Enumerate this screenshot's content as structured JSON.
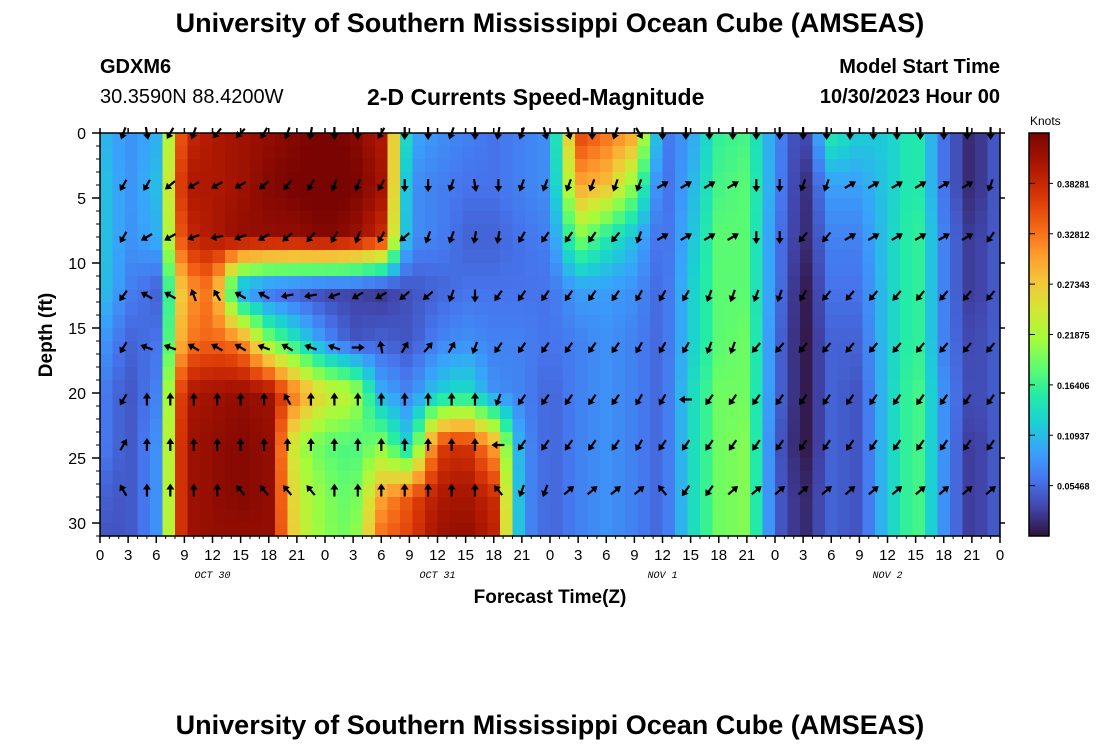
{
  "header": {
    "title": "University of Southern Mississippi Ocean Cube (AMSEAS)",
    "station": "GDXM6",
    "location": "30.3590N  88.4200W",
    "subtitle": "2-D Currents Speed-Magnitude",
    "model_start_label": "Model Start Time",
    "model_start_value": "10/30/2023 Hour 00"
  },
  "footer": {
    "title": "University of Southern Mississippi Ocean Cube (AMSEAS)"
  },
  "colors": {
    "background": "#ffffff",
    "arrow": "#000000",
    "axis": "#000000"
  },
  "chart_data": {
    "type": "heatmap",
    "title": "2-D Currents Speed-Magnitude",
    "xlabel": "Forecast Time(Z)",
    "ylabel": "Depth (ft)",
    "xlim": [
      0,
      96
    ],
    "ylim": [
      31,
      0
    ],
    "x_ticks": [
      0,
      3,
      6,
      9,
      12,
      15,
      18,
      21,
      24,
      27,
      30,
      33,
      36,
      39,
      42,
      45,
      48,
      51,
      54,
      57,
      60,
      63,
      66,
      69,
      72,
      75,
      78,
      81,
      84,
      87,
      90,
      93,
      96
    ],
    "x_tick_labels": [
      "0",
      "3",
      "6",
      "9",
      "12",
      "15",
      "18",
      "21",
      "0",
      "3",
      "6",
      "9",
      "12",
      "15",
      "18",
      "21",
      "0",
      "3",
      "6",
      "9",
      "12",
      "15",
      "18",
      "21",
      "0",
      "3",
      "6",
      "9",
      "12",
      "15",
      "18",
      "21",
      "0"
    ],
    "y_ticks": [
      0,
      5,
      10,
      15,
      20,
      25,
      30
    ],
    "y_tick_labels": [
      "0",
      "5",
      "10",
      "15",
      "20",
      "25",
      "30"
    ],
    "date_labels": [
      {
        "label": "OCT 30",
        "hour": 12
      },
      {
        "label": "OCT 31",
        "hour": 36
      },
      {
        "label": "NOV 1",
        "hour": 60
      },
      {
        "label": "NOV 2",
        "hour": 84
      }
    ],
    "colorbar": {
      "title": "Knots",
      "range": [
        0,
        0.4375
      ],
      "tick_values": [
        0.05468,
        0.10937,
        0.16406,
        0.21875,
        0.27343,
        0.32812,
        0.38281
      ],
      "tick_labels": [
        "0.05468",
        "0.10937",
        "0.16406",
        "0.21875",
        "0.27343",
        "0.32812",
        "0.38281"
      ]
    },
    "depths": [
      0,
      4,
      8,
      12,
      16,
      20,
      24,
      28,
      31
    ],
    "hours": [
      0,
      3,
      6,
      9,
      12,
      15,
      18,
      21,
      24,
      27,
      30,
      33,
      36,
      39,
      42,
      45,
      48,
      51,
      54,
      57,
      60,
      63,
      66,
      69,
      72,
      75,
      78,
      81,
      84,
      87,
      90,
      93,
      96
    ],
    "speed_knots": [
      [
        0.11,
        0.08,
        0.1,
        0.38,
        0.4,
        0.41,
        0.42,
        0.43,
        0.44,
        0.43,
        0.4,
        0.1,
        0.08,
        0.07,
        0.06,
        0.07,
        0.08,
        0.36,
        0.33,
        0.3,
        0.06,
        0.09,
        0.16,
        0.17,
        0.08,
        0.02,
        0.15,
        0.12,
        0.12,
        0.16,
        0.06,
        0.01,
        0.05
      ],
      [
        0.12,
        0.08,
        0.11,
        0.4,
        0.4,
        0.41,
        0.43,
        0.44,
        0.45,
        0.44,
        0.41,
        0.08,
        0.07,
        0.06,
        0.06,
        0.07,
        0.08,
        0.3,
        0.28,
        0.2,
        0.05,
        0.1,
        0.17,
        0.18,
        0.08,
        0.01,
        0.09,
        0.09,
        0.12,
        0.16,
        0.06,
        0.01,
        0.05
      ],
      [
        0.12,
        0.08,
        0.1,
        0.38,
        0.4,
        0.42,
        0.42,
        0.42,
        0.43,
        0.42,
        0.38,
        0.08,
        0.07,
        0.05,
        0.05,
        0.06,
        0.07,
        0.2,
        0.15,
        0.11,
        0.05,
        0.11,
        0.18,
        0.18,
        0.07,
        0.01,
        0.07,
        0.07,
        0.12,
        0.17,
        0.07,
        0.02,
        0.05
      ],
      [
        0.12,
        0.07,
        0.05,
        0.3,
        0.33,
        0.08,
        0.05,
        0.04,
        0.03,
        0.03,
        0.02,
        0.04,
        0.05,
        0.06,
        0.06,
        0.06,
        0.06,
        0.09,
        0.09,
        0.08,
        0.05,
        0.12,
        0.18,
        0.18,
        0.07,
        0.0,
        0.06,
        0.06,
        0.12,
        0.17,
        0.07,
        0.02,
        0.05
      ],
      [
        0.09,
        0.05,
        0.06,
        0.32,
        0.34,
        0.32,
        0.2,
        0.14,
        0.08,
        0.04,
        0.05,
        0.04,
        0.07,
        0.08,
        0.07,
        0.07,
        0.06,
        0.07,
        0.08,
        0.07,
        0.05,
        0.12,
        0.18,
        0.19,
        0.06,
        0.0,
        0.05,
        0.05,
        0.12,
        0.17,
        0.07,
        0.03,
        0.05
      ],
      [
        0.07,
        0.04,
        0.07,
        0.4,
        0.41,
        0.42,
        0.41,
        0.32,
        0.25,
        0.23,
        0.1,
        0.07,
        0.12,
        0.14,
        0.08,
        0.07,
        0.05,
        0.07,
        0.08,
        0.07,
        0.05,
        0.13,
        0.19,
        0.19,
        0.06,
        0.0,
        0.05,
        0.04,
        0.12,
        0.18,
        0.08,
        0.03,
        0.05
      ],
      [
        0.07,
        0.04,
        0.08,
        0.41,
        0.42,
        0.43,
        0.42,
        0.22,
        0.18,
        0.17,
        0.2,
        0.12,
        0.36,
        0.38,
        0.3,
        0.08,
        0.05,
        0.07,
        0.08,
        0.07,
        0.05,
        0.13,
        0.19,
        0.2,
        0.05,
        0.0,
        0.05,
        0.04,
        0.12,
        0.18,
        0.08,
        0.02,
        0.05
      ],
      [
        0.05,
        0.04,
        0.08,
        0.41,
        0.42,
        0.43,
        0.42,
        0.24,
        0.2,
        0.18,
        0.3,
        0.35,
        0.4,
        0.41,
        0.38,
        0.08,
        0.05,
        0.07,
        0.08,
        0.07,
        0.05,
        0.13,
        0.19,
        0.2,
        0.05,
        0.01,
        0.05,
        0.04,
        0.12,
        0.18,
        0.08,
        0.02,
        0.05
      ],
      [
        0.04,
        0.04,
        0.08,
        0.41,
        0.42,
        0.42,
        0.42,
        0.25,
        0.2,
        0.19,
        0.33,
        0.36,
        0.41,
        0.42,
        0.39,
        0.08,
        0.05,
        0.07,
        0.08,
        0.07,
        0.05,
        0.13,
        0.19,
        0.2,
        0.05,
        0.01,
        0.05,
        0.04,
        0.12,
        0.18,
        0.08,
        0.02,
        0.05
      ]
    ],
    "arrow_depths": [
      0,
      4,
      8,
      12.5,
      16.5,
      20.5,
      24,
      27.5
    ],
    "arrow_hours": [
      2.5,
      5,
      7.5,
      10,
      12.5,
      15,
      17.5,
      20,
      22.5,
      25,
      27.5,
      30,
      32.5,
      35,
      37.5,
      40,
      42.5,
      45,
      47.5,
      50,
      52.5,
      55,
      57.5,
      60,
      62.5,
      65,
      67.5,
      70,
      72.5,
      75,
      77.5,
      80,
      82.5,
      85,
      87.5,
      90,
      92.5,
      95
    ],
    "arrow_directions_deg": [
      [
        200,
        170,
        210,
        200,
        220,
        225,
        210,
        200,
        190,
        180,
        180,
        210,
        180,
        180,
        200,
        180,
        190,
        200,
        165,
        165,
        180,
        200,
        150,
        180,
        180,
        180,
        180,
        180,
        180,
        180,
        180,
        180,
        180,
        180,
        180,
        180,
        180,
        180
      ],
      [
        210,
        210,
        230,
        240,
        240,
        240,
        230,
        220,
        210,
        200,
        200,
        210,
        180,
        180,
        200,
        170,
        180,
        200,
        200,
        200,
        200,
        200,
        200,
        60,
        60,
        60,
        60,
        180,
        180,
        200,
        200,
        60,
        60,
        60,
        60,
        60,
        60,
        200
      ],
      [
        210,
        240,
        240,
        250,
        260,
        250,
        240,
        230,
        220,
        210,
        200,
        210,
        230,
        200,
        200,
        190,
        190,
        210,
        215,
        215,
        215,
        220,
        200,
        60,
        60,
        60,
        60,
        180,
        180,
        220,
        220,
        60,
        60,
        60,
        60,
        60,
        60,
        215
      ],
      [
        215,
        300,
        300,
        340,
        330,
        300,
        300,
        260,
        260,
        250,
        240,
        240,
        230,
        230,
        200,
        180,
        215,
        215,
        215,
        215,
        215,
        215,
        210,
        210,
        210,
        200,
        200,
        200,
        200,
        210,
        220,
        220,
        220,
        220,
        220,
        220,
        220,
        220
      ],
      [
        210,
        290,
        290,
        300,
        300,
        300,
        290,
        300,
        290,
        290,
        90,
        350,
        30,
        40,
        30,
        200,
        215,
        215,
        215,
        215,
        215,
        215,
        210,
        210,
        210,
        200,
        200,
        220,
        220,
        220,
        220,
        220,
        220,
        220,
        220,
        220,
        220,
        220
      ],
      [
        210,
        0,
        0,
        0,
        0,
        0,
        0,
        330,
        0,
        0,
        0,
        0,
        0,
        0,
        0,
        0,
        200,
        215,
        215,
        215,
        215,
        215,
        210,
        210,
        270,
        215,
        215,
        215,
        215,
        215,
        215,
        215,
        215,
        215,
        215,
        215,
        215,
        215
      ],
      [
        30,
        0,
        0,
        0,
        0,
        0,
        0,
        0,
        0,
        0,
        0,
        0,
        0,
        0,
        0,
        0,
        270,
        215,
        215,
        215,
        215,
        215,
        210,
        215,
        215,
        215,
        215,
        215,
        215,
        215,
        215,
        215,
        215,
        215,
        215,
        215,
        215,
        215
      ],
      [
        330,
        0,
        0,
        0,
        0,
        320,
        320,
        320,
        320,
        0,
        0,
        0,
        0,
        0,
        0,
        0,
        320,
        200,
        200,
        50,
        50,
        50,
        50,
        320,
        215,
        215,
        50,
        50,
        50,
        50,
        50,
        50,
        50,
        50,
        50,
        50,
        50,
        50
      ]
    ]
  }
}
